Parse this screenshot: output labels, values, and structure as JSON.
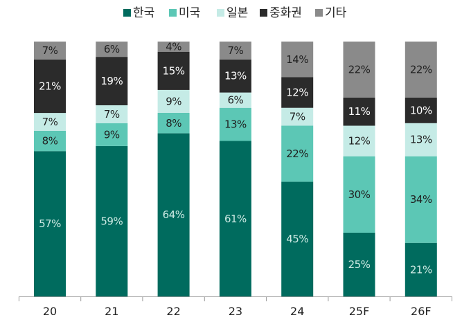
{
  "chart_data": {
    "type": "bar",
    "stacked": true,
    "categories": [
      "20",
      "21",
      "22",
      "23",
      "24",
      "25F",
      "26F"
    ],
    "series": [
      {
        "name": "한국",
        "color": "#006b5e",
        "label_color": "#cdeae4",
        "values": [
          57,
          59,
          64,
          61,
          45,
          25,
          21
        ]
      },
      {
        "name": "미국",
        "color": "#5cc7b5",
        "label_color": "#1f1f1f",
        "values": [
          8,
          9,
          8,
          13,
          22,
          30,
          34
        ]
      },
      {
        "name": "일본",
        "color": "#c5ebe6",
        "label_color": "#1f1f1f",
        "values": [
          7,
          7,
          9,
          6,
          7,
          12,
          13
        ]
      },
      {
        "name": "중화권",
        "color": "#2b2b2b",
        "label_color": "#ffffff",
        "values": [
          21,
          19,
          15,
          13,
          12,
          11,
          10
        ]
      },
      {
        "name": "기타",
        "color": "#8a8a8a",
        "label_color": "#1f1f1f",
        "values": [
          7,
          6,
          4,
          7,
          14,
          22,
          22
        ]
      }
    ],
    "value_suffix": "%",
    "ylim": [
      0,
      100
    ],
    "grid": false,
    "legend_position": "top",
    "title": "",
    "xlabel": "",
    "ylabel": ""
  }
}
